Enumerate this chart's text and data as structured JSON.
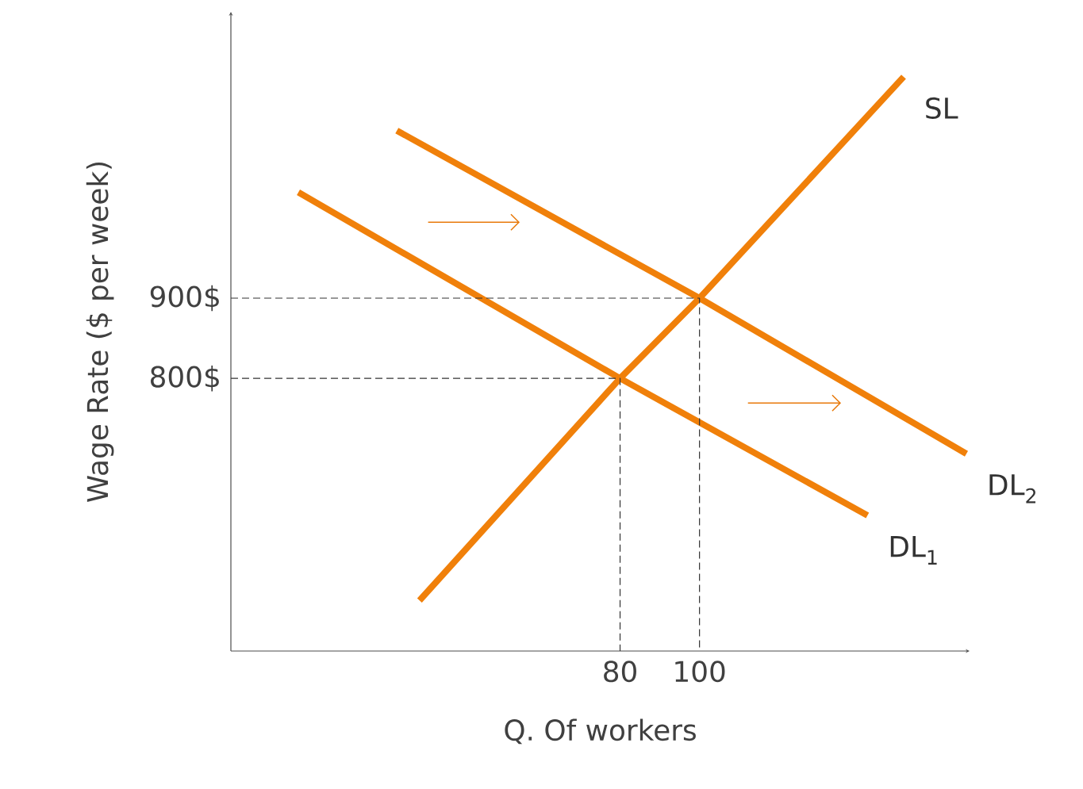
{
  "chart_data": {
    "type": "line",
    "xlabel": "Q. Of workers",
    "ylabel": "Wage Rate ($ per week)",
    "xlim": [
      -18,
      168
    ],
    "ylim": [
      460,
      1257
    ],
    "xticks": [
      80,
      100
    ],
    "yticks": [
      {
        "value": 800,
        "label": "800$"
      },
      {
        "value": 900,
        "label": "900$"
      }
    ],
    "series": [
      {
        "name": "SL",
        "color": "#f0800a",
        "x": [
          29.5,
          80,
          100,
          151.4
        ],
        "values": [
          523,
          800,
          900,
          1176
        ]
      },
      {
        "name": "DL$_{1}$",
        "color": "#f0800a",
        "x": [
          -1,
          80,
          142.3
        ],
        "values": [
          1032,
          800,
          629
        ]
      },
      {
        "name": "DL$_{2}$",
        "color": "#f0800a",
        "x": [
          23.8,
          100,
          167.2
        ],
        "values": [
          1109,
          900,
          706
        ]
      },
      {
        "color": "#333333",
        "line_style": "dashed",
        "x": [
          -18,
          80,
          80
        ],
        "values": [
          800,
          800,
          460
        ]
      },
      {
        "color": "#333333",
        "line_style": "dashed",
        "x": [
          -18,
          100,
          100
        ],
        "values": [
          900,
          900,
          460
        ]
      }
    ]
  }
}
